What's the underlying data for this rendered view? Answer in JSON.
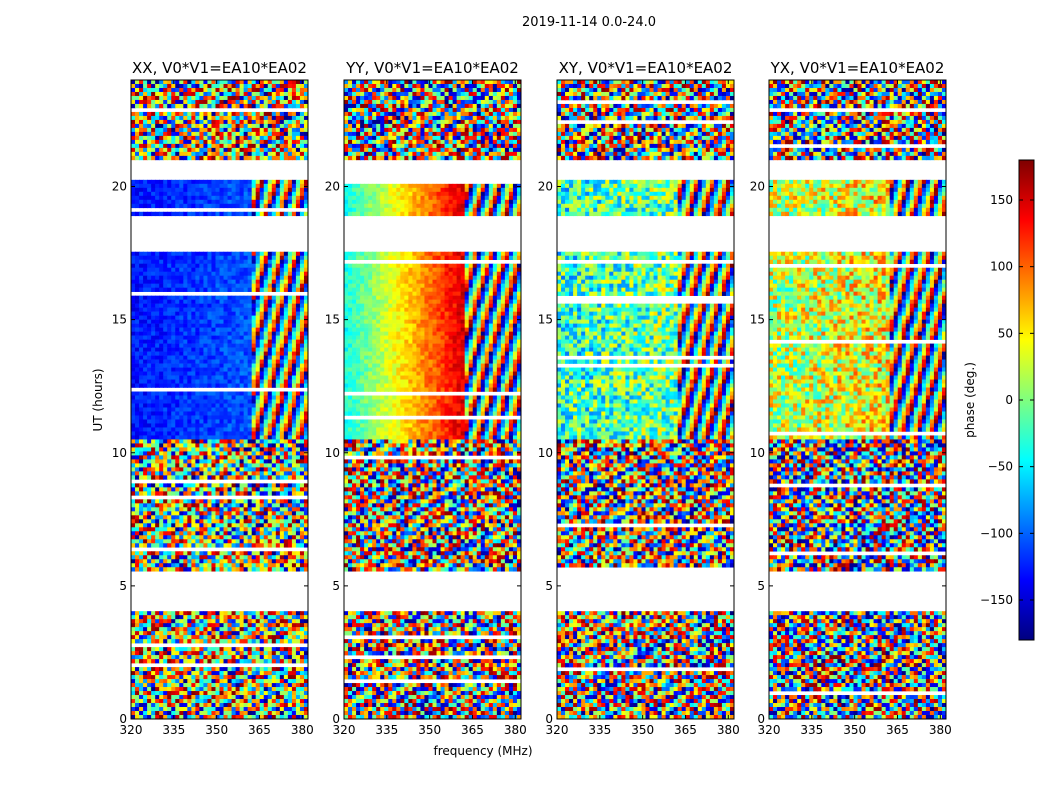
{
  "chart_data": {
    "type": "heatmap",
    "suptitle": "2019-11-14 0.0-24.0",
    "xlabel": "frequency (MHz)",
    "ylabel": "UT (hours)",
    "xlim": [
      320,
      382
    ],
    "ylim": [
      0,
      24
    ],
    "x_ticks": [
      "320",
      "335",
      "350",
      "365",
      "380"
    ],
    "x_tick_values": [
      320,
      335,
      350,
      365,
      380
    ],
    "y_ticks": [
      "0",
      "5",
      "10",
      "15",
      "20"
    ],
    "y_tick_values": [
      0,
      5,
      10,
      15,
      20
    ],
    "panels": [
      {
        "title": "XX, V0*V1=EA10*EA02",
        "dominant_phase_deg": -130
      },
      {
        "title": "YY, V0*V1=EA10*EA02",
        "dominant_phase_deg": -40
      },
      {
        "title": "XY, V0*V1=EA10*EA02",
        "dominant_phase_deg": -30
      },
      {
        "title": "YX, V0*V1=EA10*EA02",
        "dominant_phase_deg": 20
      }
    ],
    "data_gaps_hours": [
      [
        4.05,
        5.5
      ],
      [
        17.6,
        18.9
      ],
      [
        20.2,
        21.0
      ]
    ],
    "colorbar": {
      "label": "phase (deg.)",
      "range": [
        -180,
        180
      ],
      "ticks": [
        "150",
        "100",
        "50",
        "0",
        "−50",
        "−100",
        "−150"
      ],
      "tick_values": [
        150,
        100,
        50,
        0,
        -50,
        -100,
        -150
      ],
      "colormap": "jet",
      "colors": [
        "#00007f",
        "#0000ff",
        "#007fff",
        "#00ffff",
        "#7fff7f",
        "#ffff00",
        "#ff7f00",
        "#ff0000",
        "#7f0000"
      ]
    }
  }
}
